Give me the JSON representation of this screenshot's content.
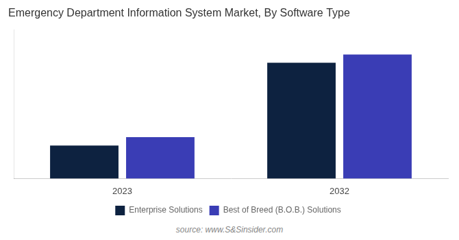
{
  "chart_data": {
    "type": "bar",
    "title": "Emergency Department Information System Market, By Software Type",
    "categories": [
      "2023",
      "2032"
    ],
    "series": [
      {
        "name": "Enterprise Solutions",
        "color": "#0d2240",
        "values": [
          1.0,
          3.5
        ]
      },
      {
        "name": "Best of Breed (B.O.B.) Solutions",
        "color": "#3a3db5",
        "values": [
          1.25,
          3.75
        ]
      }
    ],
    "ylim": [
      0,
      4.5
    ],
    "tick_labels": "x",
    "grid": false,
    "legend": "bottom",
    "annotations": [
      "source: www.S&Sinsider.com"
    ]
  }
}
